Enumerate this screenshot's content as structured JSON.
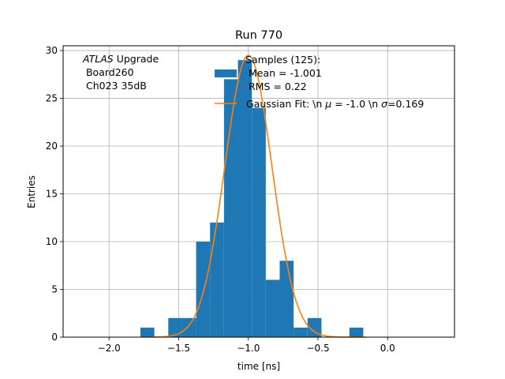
{
  "chart_data": {
    "type": "bar",
    "title": "Run 770",
    "xlabel": "time [ns]",
    "ylabel": "Entries",
    "xlim": [
      -2.33,
      0.48
    ],
    "ylim": [
      0,
      30.5
    ],
    "xticks": [
      -2.0,
      -1.5,
      -1.0,
      -0.5,
      0.0
    ],
    "xtick_labels": [
      "−2.0",
      "−1.5",
      "−1.0",
      "−0.5",
      "0.0"
    ],
    "yticks": [
      0,
      5,
      10,
      15,
      20,
      25,
      30
    ],
    "ytick_labels": [
      "0",
      "5",
      "10",
      "15",
      "20",
      "25",
      "30"
    ],
    "grid": true,
    "annotation": {
      "line1_italic": "ATLAS",
      "line1_rest": " Upgrade",
      "line2": " Board260",
      "line3": " Ch023 35dB"
    },
    "histogram": {
      "name": "Samples (125):",
      "color": "#1f77b4",
      "bin_edges": [
        -1.775,
        -1.675,
        -1.575,
        -1.475,
        -1.375,
        -1.275,
        -1.175,
        -1.075,
        -0.975,
        -0.875,
        -0.775,
        -0.675,
        -0.575,
        -0.475,
        -0.375,
        -0.275,
        -0.175,
        -0.075
      ],
      "counts": [
        1,
        0,
        2,
        2,
        10,
        12,
        27,
        29,
        24,
        6,
        8,
        1,
        2,
        0,
        0,
        1,
        0
      ],
      "stats": [
        "Mean = -1.001",
        "RMS = 0.22"
      ]
    },
    "fit": {
      "name": "Gaussian Fit: \\n $\\mu$ = -1.0 \\n $\\sigma$=0.169",
      "legend_prefix": "Gaussian Fit: \\n ",
      "legend_mu": "μ",
      "legend_mid": " = -1.0 \\n ",
      "legend_sigma": "σ",
      "legend_suffix": "=0.169",
      "color": "#ff7f0e",
      "mu": -1.0,
      "sigma": 0.169,
      "amplitude": 29.5,
      "x_range": [
        -1.7,
        -0.15
      ]
    },
    "legend_position": "upper-right"
  }
}
